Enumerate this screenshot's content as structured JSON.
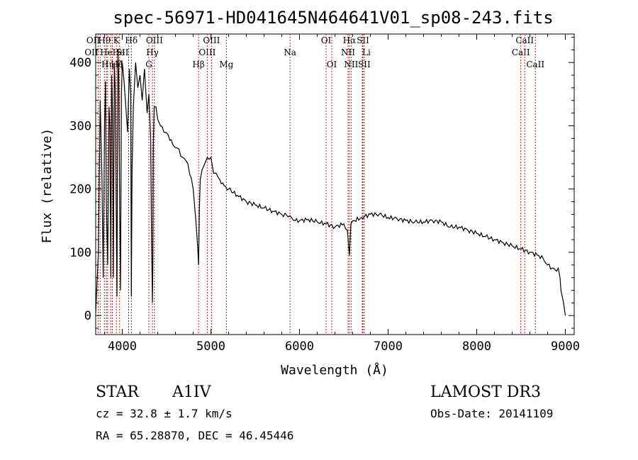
{
  "chart_data": {
    "type": "line",
    "title": "spec-56971-HD041645N464641V01_sp08-243.fits",
    "xlabel": "Wavelength (Å)",
    "ylabel": "Flux (relative)",
    "xlim": [
      3700,
      9100
    ],
    "ylim": [
      -30,
      445
    ],
    "x_ticks": [
      4000,
      5000,
      6000,
      7000,
      8000,
      9000
    ],
    "y_ticks": [
      0,
      100,
      200,
      300,
      400
    ],
    "series": [
      {
        "name": "flux",
        "x": [
          3700,
          3730,
          3750,
          3770,
          3785,
          3800,
          3810,
          3820,
          3835,
          3850,
          3860,
          3870,
          3880,
          3890,
          3900,
          3910,
          3920,
          3930,
          3940,
          3950,
          3960,
          3970,
          3980,
          3990,
          4000,
          4020,
          4040,
          4060,
          4080,
          4095,
          4102,
          4110,
          4125,
          4150,
          4175,
          4200,
          4225,
          4250,
          4280,
          4300,
          4320,
          4330,
          4340,
          4345,
          4350,
          4360,
          4380,
          4400,
          4430,
          4470,
          4520,
          4570,
          4620,
          4680,
          4740,
          4800,
          4830,
          4850,
          4861,
          4870,
          4880,
          4900,
          4930,
          4960,
          5000,
          5030,
          5060,
          5100,
          5150,
          5200,
          5300,
          5400,
          5500,
          5600,
          5700,
          5800,
          5890,
          5950,
          6000,
          6100,
          6200,
          6300,
          6400,
          6500,
          6540,
          6563,
          6580,
          6620,
          6700,
          6800,
          6900,
          7000,
          7100,
          7200,
          7300,
          7400,
          7500,
          7600,
          7700,
          7800,
          7900,
          8000,
          8100,
          8200,
          8300,
          8400,
          8500,
          8600,
          8700,
          8750,
          8800,
          8850,
          8900,
          8920,
          8940,
          8950,
          8980,
          9000
        ],
        "y": [
          5,
          100,
          340,
          220,
          60,
          300,
          370,
          180,
          80,
          330,
          300,
          60,
          380,
          320,
          60,
          400,
          360,
          190,
          30,
          420,
          380,
          180,
          40,
          350,
          400,
          370,
          330,
          290,
          390,
          350,
          30,
          230,
          330,
          400,
          360,
          380,
          340,
          390,
          320,
          350,
          280,
          120,
          20,
          80,
          270,
          330,
          330,
          310,
          300,
          290,
          285,
          270,
          265,
          250,
          240,
          200,
          150,
          110,
          80,
          170,
          215,
          230,
          240,
          250,
          250,
          225,
          225,
          215,
          205,
          200,
          190,
          180,
          175,
          170,
          165,
          160,
          158,
          150,
          150,
          152,
          148,
          145,
          140,
          145,
          135,
          95,
          145,
          150,
          155,
          160,
          160,
          155,
          153,
          150,
          148,
          148,
          150,
          148,
          140,
          140,
          135,
          130,
          125,
          120,
          115,
          110,
          105,
          100,
          95,
          90,
          80,
          75,
          70,
          75,
          60,
          40,
          20,
          0
        ]
      }
    ],
    "line_markers": [
      {
        "wavelength": 3729,
        "label": "OII",
        "row": 2,
        "anchor": "end"
      },
      {
        "wavelength": 3750,
        "label": "OII",
        "row": 1,
        "anchor": "end"
      },
      {
        "wavelength": 3798,
        "label": "Hθ",
        "row": 1,
        "anchor": "middle"
      },
      {
        "wavelength": 3820,
        "label": "He",
        "row": 2,
        "anchor": "middle"
      },
      {
        "wavelength": 3835,
        "label": "Hη",
        "row": 3,
        "anchor": "middle"
      },
      {
        "wavelength": 3869,
        "label": "Hζ",
        "row": 3,
        "anchor": "start"
      },
      {
        "wavelength": 3889,
        "label": "He",
        "row": 2,
        "anchor": "start"
      },
      {
        "wavelength": 3934,
        "label": "K",
        "row": 1,
        "anchor": "middle"
      },
      {
        "wavelength": 3970,
        "label": "H",
        "row": 3,
        "anchor": "middle"
      },
      {
        "wavelength": 4072,
        "label": "SII",
        "row": 2,
        "anchor": "end"
      },
      {
        "wavelength": 4102,
        "label": "Hδ",
        "row": 1,
        "anchor": "middle"
      },
      {
        "wavelength": 4300,
        "label": "G",
        "row": 3,
        "anchor": "middle"
      },
      {
        "wavelength": 4340,
        "label": "Hγ",
        "row": 2,
        "anchor": "middle"
      },
      {
        "wavelength": 4363,
        "label": "OIII",
        "row": 1,
        "anchor": "middle"
      },
      {
        "wavelength": 4861,
        "label": "Hβ",
        "row": 3,
        "anchor": "middle"
      },
      {
        "wavelength": 4959,
        "label": "OIII",
        "row": 2,
        "anchor": "middle"
      },
      {
        "wavelength": 5007,
        "label": "OIII",
        "row": 1,
        "anchor": "middle"
      },
      {
        "wavelength": 5175,
        "label": "Mg",
        "row": 3,
        "anchor": "middle"
      },
      {
        "wavelength": 5893,
        "label": "Na",
        "row": 2,
        "anchor": "middle"
      },
      {
        "wavelength": 6300,
        "label": "OI",
        "row": 1,
        "anchor": "middle"
      },
      {
        "wavelength": 6364,
        "label": "OI",
        "row": 3,
        "anchor": "middle"
      },
      {
        "wavelength": 6548,
        "label": "NII",
        "row": 2,
        "anchor": "middle"
      },
      {
        "wavelength": 6563,
        "label": "Hα",
        "row": 1,
        "anchor": "middle"
      },
      {
        "wavelength": 6583,
        "label": "NII",
        "row": 3,
        "anchor": "middle"
      },
      {
        "wavelength": 6708,
        "label": "Li",
        "row": 2,
        "anchor": "start"
      },
      {
        "wavelength": 6716,
        "label": "SII",
        "row": 1,
        "anchor": "middle"
      },
      {
        "wavelength": 6731,
        "label": "SII",
        "row": 3,
        "anchor": "middle"
      },
      {
        "wavelength": 8498,
        "label": "CaII",
        "row": 2,
        "anchor": "middle"
      },
      {
        "wavelength": 8542,
        "label": "CaII",
        "row": 1,
        "anchor": "middle"
      },
      {
        "wavelength": 8662,
        "label": "CaII",
        "row": 3,
        "anchor": "middle"
      }
    ]
  },
  "info": {
    "object_type": "STAR",
    "spectral_class": "A1IV",
    "survey": "LAMOST DR3",
    "velocity": "cz = 32.8 ± 1.7 km/s",
    "obs_date": "Obs-Date: 20141109",
    "coords": "RA =  65.28870, DEC =  46.45446"
  },
  "colors": {
    "line_marker": "#b22222",
    "spectrum": "#000000"
  }
}
